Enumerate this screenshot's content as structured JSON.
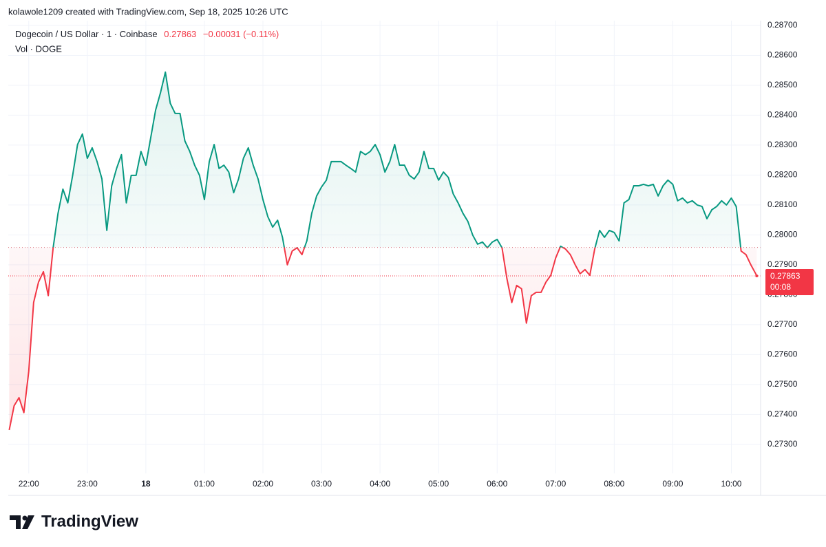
{
  "header": {
    "credit": "kolawole1209 created with TradingView.com, Sep 18, 2025 10:26 UTC",
    "brand": "TradingView"
  },
  "chart_data": {
    "type": "line",
    "title": "Dogecoin / US Dollar · 1 · Coinbase",
    "last_price": 0.27863,
    "change_label": "−0.00031 (−0.11%)",
    "volume_label": "Vol · DOGE",
    "countdown": "00:08",
    "baseline": 0.27958,
    "up_color": "#089981",
    "down_color": "#f23645",
    "grid": true,
    "xlim": [
      "2025-09-17T21:39",
      "2025-09-18T10:30"
    ],
    "xticks": [
      {
        "value": "2025-09-17T22:00",
        "label": "22:00"
      },
      {
        "value": "2025-09-17T23:00",
        "label": "23:00"
      },
      {
        "value": "2025-09-18T00:00",
        "label": "18"
      },
      {
        "value": "2025-09-18T01:00",
        "label": "01:00"
      },
      {
        "value": "2025-09-18T02:00",
        "label": "02:00"
      },
      {
        "value": "2025-09-18T03:00",
        "label": "03:00"
      },
      {
        "value": "2025-09-18T04:00",
        "label": "04:00"
      },
      {
        "value": "2025-09-18T05:00",
        "label": "05:00"
      },
      {
        "value": "2025-09-18T06:00",
        "label": "06:00"
      },
      {
        "value": "2025-09-18T07:00",
        "label": "07:00"
      },
      {
        "value": "2025-09-18T08:00",
        "label": "08:00"
      },
      {
        "value": "2025-09-18T09:00",
        "label": "09:00"
      },
      {
        "value": "2025-09-18T10:00",
        "label": "10:00"
      }
    ],
    "ylim": [
      0.27203,
      0.28716
    ],
    "yticks": [
      {
        "value": 0.287,
        "label": "0.28700"
      },
      {
        "value": 0.286,
        "label": "0.28600"
      },
      {
        "value": 0.285,
        "label": "0.28500"
      },
      {
        "value": 0.284,
        "label": "0.28400"
      },
      {
        "value": 0.283,
        "label": "0.28300"
      },
      {
        "value": 0.282,
        "label": "0.28200"
      },
      {
        "value": 0.281,
        "label": "0.28100"
      },
      {
        "value": 0.28,
        "label": "0.28000"
      },
      {
        "value": 0.279,
        "label": "0.27900"
      },
      {
        "value": 0.278,
        "label": "0.27800"
      },
      {
        "value": 0.277,
        "label": "0.27700"
      },
      {
        "value": 0.276,
        "label": "0.27600"
      },
      {
        "value": 0.275,
        "label": "0.27500"
      },
      {
        "value": 0.274,
        "label": "0.27400"
      },
      {
        "value": 0.273,
        "label": "0.27300"
      }
    ],
    "x": [
      "2025-09-17T21:40",
      "2025-09-17T21:45",
      "2025-09-17T21:50",
      "2025-09-17T21:55",
      "2025-09-17T22:00",
      "2025-09-17T22:05",
      "2025-09-17T22:10",
      "2025-09-17T22:15",
      "2025-09-17T22:20",
      "2025-09-17T22:25",
      "2025-09-17T22:30",
      "2025-09-17T22:35",
      "2025-09-17T22:40",
      "2025-09-17T22:45",
      "2025-09-17T22:50",
      "2025-09-17T22:55",
      "2025-09-17T23:00",
      "2025-09-17T23:05",
      "2025-09-17T23:10",
      "2025-09-17T23:15",
      "2025-09-17T23:20",
      "2025-09-17T23:25",
      "2025-09-17T23:30",
      "2025-09-17T23:35",
      "2025-09-17T23:40",
      "2025-09-17T23:45",
      "2025-09-17T23:50",
      "2025-09-17T23:55",
      "2025-09-18T00:00",
      "2025-09-18T00:05",
      "2025-09-18T00:10",
      "2025-09-18T00:15",
      "2025-09-18T00:20",
      "2025-09-18T00:25",
      "2025-09-18T00:30",
      "2025-09-18T00:35",
      "2025-09-18T00:40",
      "2025-09-18T00:45",
      "2025-09-18T00:50",
      "2025-09-18T00:55",
      "2025-09-18T01:00",
      "2025-09-18T01:05",
      "2025-09-18T01:10",
      "2025-09-18T01:15",
      "2025-09-18T01:20",
      "2025-09-18T01:25",
      "2025-09-18T01:30",
      "2025-09-18T01:35",
      "2025-09-18T01:40",
      "2025-09-18T01:45",
      "2025-09-18T01:50",
      "2025-09-18T01:55",
      "2025-09-18T02:00",
      "2025-09-18T02:05",
      "2025-09-18T02:10",
      "2025-09-18T02:15",
      "2025-09-18T02:20",
      "2025-09-18T02:25",
      "2025-09-18T02:30",
      "2025-09-18T02:35",
      "2025-09-18T02:40",
      "2025-09-18T02:45",
      "2025-09-18T02:50",
      "2025-09-18T02:55",
      "2025-09-18T03:00",
      "2025-09-18T03:05",
      "2025-09-18T03:10",
      "2025-09-18T03:15",
      "2025-09-18T03:20",
      "2025-09-18T03:25",
      "2025-09-18T03:30",
      "2025-09-18T03:35",
      "2025-09-18T03:40",
      "2025-09-18T03:45",
      "2025-09-18T03:50",
      "2025-09-18T03:55",
      "2025-09-18T04:00",
      "2025-09-18T04:05",
      "2025-09-18T04:10",
      "2025-09-18T04:15",
      "2025-09-18T04:20",
      "2025-09-18T04:25",
      "2025-09-18T04:30",
      "2025-09-18T04:35",
      "2025-09-18T04:40",
      "2025-09-18T04:45",
      "2025-09-18T04:50",
      "2025-09-18T04:55",
      "2025-09-18T05:00",
      "2025-09-18T05:05",
      "2025-09-18T05:10",
      "2025-09-18T05:15",
      "2025-09-18T05:20",
      "2025-09-18T05:25",
      "2025-09-18T05:30",
      "2025-09-18T05:35",
      "2025-09-18T05:40",
      "2025-09-18T05:45",
      "2025-09-18T05:50",
      "2025-09-18T05:55",
      "2025-09-18T06:00",
      "2025-09-18T06:05",
      "2025-09-18T06:10",
      "2025-09-18T06:15",
      "2025-09-18T06:20",
      "2025-09-18T06:25",
      "2025-09-18T06:30",
      "2025-09-18T06:35",
      "2025-09-18T06:40",
      "2025-09-18T06:45",
      "2025-09-18T06:50",
      "2025-09-18T06:55",
      "2025-09-18T07:00",
      "2025-09-18T07:05",
      "2025-09-18T07:10",
      "2025-09-18T07:15",
      "2025-09-18T07:20",
      "2025-09-18T07:25",
      "2025-09-18T07:30",
      "2025-09-18T07:35",
      "2025-09-18T07:40",
      "2025-09-18T07:45",
      "2025-09-18T07:50",
      "2025-09-18T07:55",
      "2025-09-18T08:00",
      "2025-09-18T08:05",
      "2025-09-18T08:10",
      "2025-09-18T08:15",
      "2025-09-18T08:20",
      "2025-09-18T08:25",
      "2025-09-18T08:30",
      "2025-09-18T08:35",
      "2025-09-18T08:40",
      "2025-09-18T08:45",
      "2025-09-18T08:50",
      "2025-09-18T08:55",
      "2025-09-18T09:00",
      "2025-09-18T09:05",
      "2025-09-18T09:10",
      "2025-09-18T09:15",
      "2025-09-18T09:20",
      "2025-09-18T09:25",
      "2025-09-18T09:30",
      "2025-09-18T09:35",
      "2025-09-18T09:40",
      "2025-09-18T09:45",
      "2025-09-18T09:50",
      "2025-09-18T09:55",
      "2025-09-18T10:00",
      "2025-09-18T10:05",
      "2025-09-18T10:10",
      "2025-09-18T10:15",
      "2025-09-18T10:20",
      "2025-09-18T10:25",
      "2025-09-18T10:26"
    ],
    "values": [
      0.27348,
      0.27429,
      0.27456,
      0.27406,
      0.27544,
      0.27774,
      0.27842,
      0.27877,
      0.27797,
      0.27957,
      0.28072,
      0.28153,
      0.28107,
      0.28199,
      0.28302,
      0.28337,
      0.28256,
      0.28291,
      0.28245,
      0.28187,
      0.28015,
      0.28164,
      0.28222,
      0.28268,
      0.28107,
      0.28199,
      0.28199,
      0.28279,
      0.28233,
      0.28325,
      0.28417,
      0.28475,
      0.28544,
      0.2844,
      0.28406,
      0.28406,
      0.28314,
      0.28279,
      0.28233,
      0.28199,
      0.28118,
      0.28245,
      0.28302,
      0.28222,
      0.28233,
      0.2821,
      0.28141,
      0.28187,
      0.28256,
      0.28291,
      0.28233,
      0.28187,
      0.28118,
      0.28061,
      0.28026,
      0.28049,
      0.27992,
      0.279,
      0.27946,
      0.27957,
      0.27934,
      0.2798,
      0.28072,
      0.2813,
      0.2816,
      0.28183,
      0.28245,
      0.28245,
      0.28245,
      0.28233,
      0.28222,
      0.2821,
      0.28279,
      0.28268,
      0.28279,
      0.28302,
      0.28268,
      0.2821,
      0.28245,
      0.28302,
      0.28233,
      0.28233,
      0.28199,
      0.28187,
      0.2821,
      0.28279,
      0.28222,
      0.28222,
      0.28183,
      0.2821,
      0.28192,
      0.28137,
      0.28107,
      0.28072,
      0.28045,
      0.27999,
      0.27969,
      0.27976,
      0.27957,
      0.27976,
      0.27985,
      0.27957,
      0.27854,
      0.27774,
      0.27831,
      0.2782,
      0.27705,
      0.27797,
      0.27808,
      0.27808,
      0.27842,
      0.27865,
      0.27923,
      0.27962,
      0.27953,
      0.27934,
      0.279,
      0.2787,
      0.27884,
      0.27865,
      0.27953,
      0.28015,
      0.27992,
      0.28015,
      0.28008,
      0.2798,
      0.28107,
      0.28118,
      0.28164,
      0.28164,
      0.28169,
      0.28164,
      0.28169,
      0.2813,
      0.28164,
      0.28183,
      0.28169,
      0.28114,
      0.28123,
      0.28107,
      0.28114,
      0.281,
      0.28095,
      0.28054,
      0.28084,
      0.28095,
      0.28114,
      0.281,
      0.28123,
      0.28095,
      0.27946,
      0.27934,
      0.279,
      0.2787,
      0.27863
    ]
  }
}
